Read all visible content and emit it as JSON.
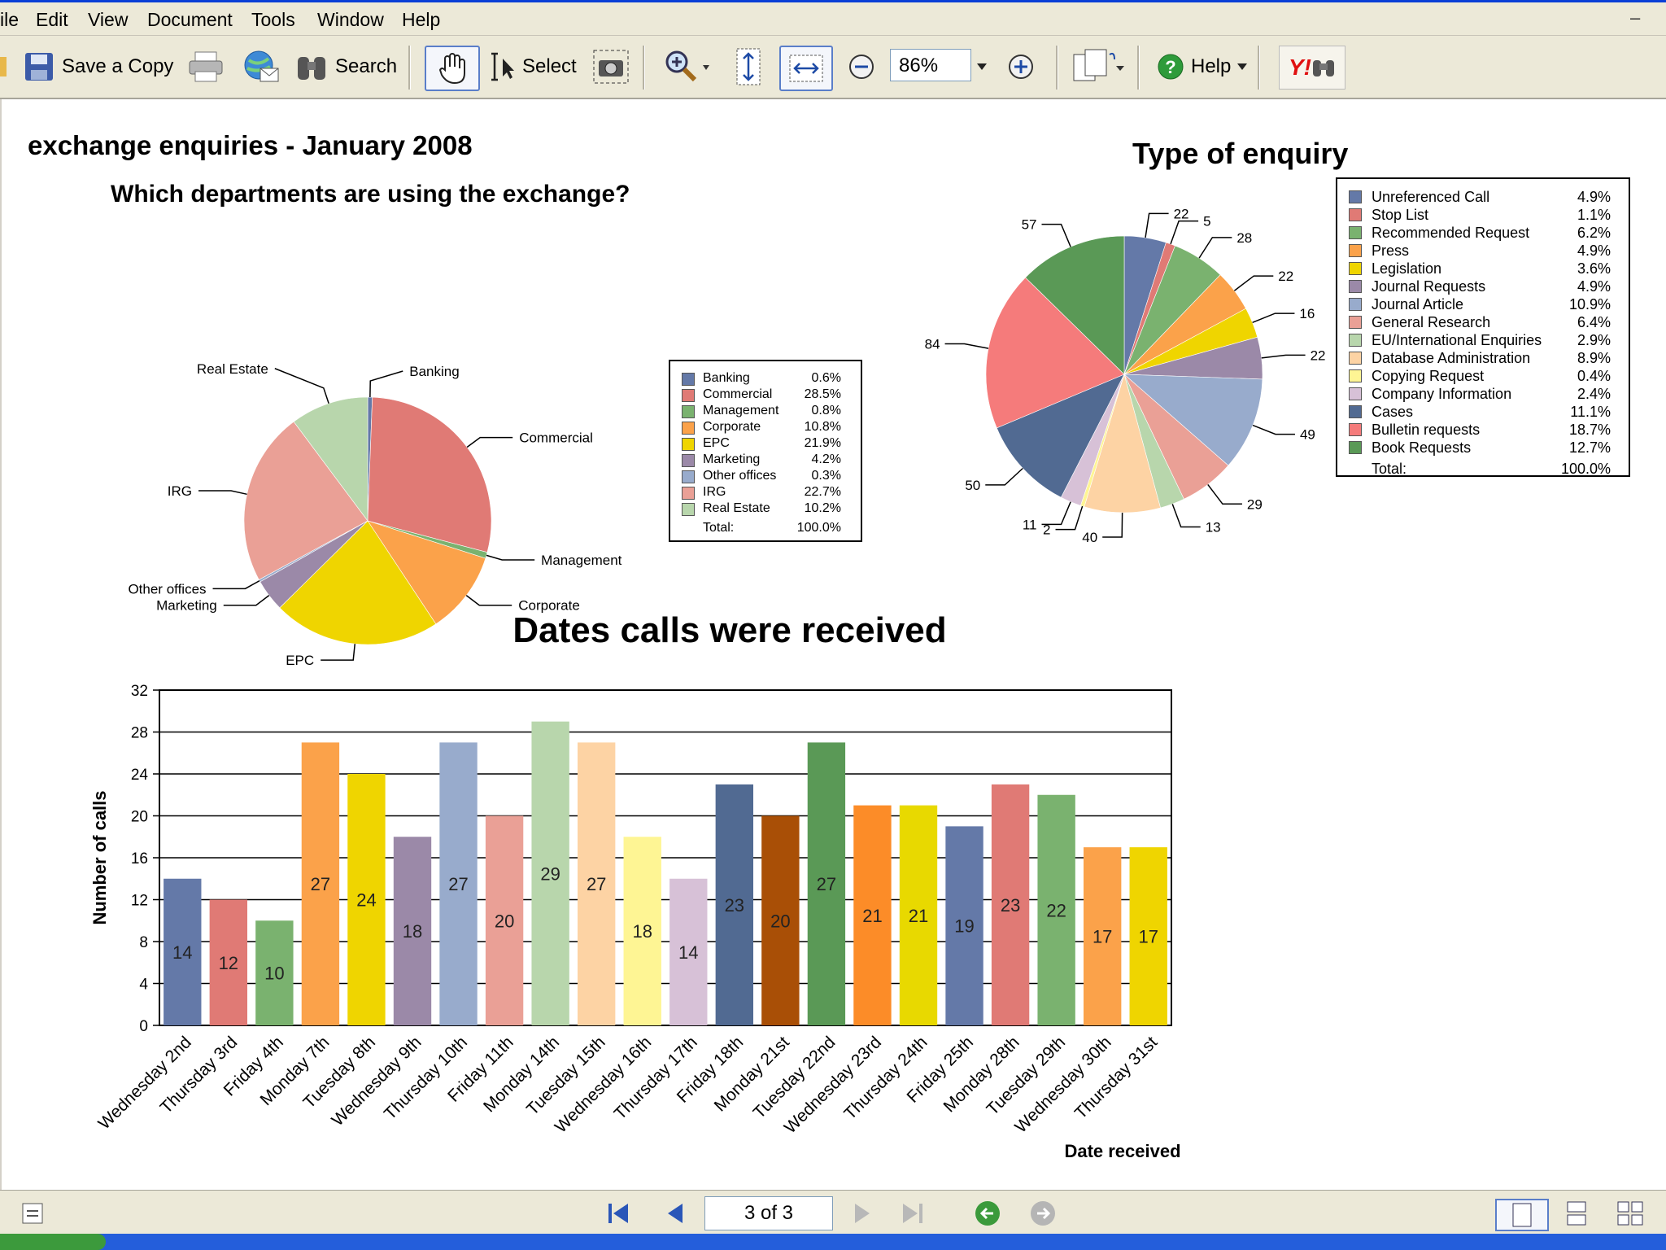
{
  "menu": {
    "items": [
      "ile",
      "Edit",
      "View",
      "Document",
      "Tools",
      "Window",
      "Help"
    ]
  },
  "toolbar": {
    "save_copy": "Save a Copy",
    "search": "Search",
    "select": "Select",
    "zoom": "86%",
    "help": "Help",
    "yahoo": "Y!"
  },
  "document": {
    "title": "exchange enquiries - January 2008"
  },
  "status": {
    "page": "3 of 3"
  },
  "colors": {
    "accent": "#0a3fd6",
    "toolbar_bg": "#ece9d8"
  },
  "chart_data": [
    {
      "type": "pie",
      "title": "Which departments are using the exchange?",
      "slices": [
        {
          "label": "Banking",
          "pct": "0.6%",
          "value": 0.6,
          "color": "#6479a8"
        },
        {
          "label": "Commercial",
          "pct": "28.5%",
          "value": 28.5,
          "color": "#e07a75"
        },
        {
          "label": "Management",
          "pct": "0.8%",
          "value": 0.8,
          "color": "#7ab26f"
        },
        {
          "label": "Corporate",
          "pct": "10.8%",
          "value": 10.8,
          "color": "#fba24a"
        },
        {
          "label": "EPC",
          "pct": "21.9%",
          "value": 21.9,
          "color": "#efd500"
        },
        {
          "label": "Marketing",
          "pct": "4.2%",
          "value": 4.2,
          "color": "#9b89a8"
        },
        {
          "label": "Other offices",
          "pct": "0.3%",
          "value": 0.3,
          "color": "#98abcc"
        },
        {
          "label": "IRG",
          "pct": "22.7%",
          "value": 22.7,
          "color": "#eaa096"
        },
        {
          "label": "Real Estate",
          "pct": "10.2%",
          "value": 10.2,
          "color": "#b8d6ac"
        }
      ],
      "total_label": "Total:",
      "total_pct": "100.0%"
    },
    {
      "type": "pie",
      "title": "Type of enquiry",
      "slices": [
        {
          "label": "Unreferenced Call",
          "pct": "4.9%",
          "value": 22,
          "color": "#6479a8"
        },
        {
          "label": "Stop List",
          "pct": "1.1%",
          "value": 5,
          "color": "#e07a75"
        },
        {
          "label": "Recommended Request",
          "pct": "6.2%",
          "value": 28,
          "color": "#7ab26f"
        },
        {
          "label": "Press",
          "pct": "4.9%",
          "value": 22,
          "color": "#fba24a"
        },
        {
          "label": "Legislation",
          "pct": "3.6%",
          "value": 16,
          "color": "#efd500"
        },
        {
          "label": "Journal Requests",
          "pct": "4.9%",
          "value": 22,
          "color": "#9b89a8"
        },
        {
          "label": "Journal Article",
          "pct": "10.9%",
          "value": 49,
          "color": "#98abcc"
        },
        {
          "label": "General Research",
          "pct": "6.4%",
          "value": 29,
          "color": "#eaa096"
        },
        {
          "label": "EU/International Enquiries",
          "pct": "2.9%",
          "value": 13,
          "color": "#b8d6ac"
        },
        {
          "label": "Database Administration",
          "pct": "8.9%",
          "value": 40,
          "color": "#fdd3a4"
        },
        {
          "label": "Copying Request",
          "pct": "0.4%",
          "value": 2,
          "color": "#fef594"
        },
        {
          "label": "Company Information",
          "pct": "2.4%",
          "value": 11,
          "color": "#d7c1d7"
        },
        {
          "label": "Cases",
          "pct": "11.1%",
          "value": 50,
          "color": "#516a92"
        },
        {
          "label": "Bulletin requests",
          "pct": "18.7%",
          "value": 84,
          "color": "#f57b7b"
        },
        {
          "label": "Book Requests",
          "pct": "12.7%",
          "value": 57,
          "color": "#5a9956"
        }
      ],
      "total_label": "Total:",
      "total_pct": "100.0%"
    },
    {
      "type": "bar",
      "title": "Dates calls were received",
      "xlabel": "Date received",
      "ylabel": "Number of calls",
      "ylim": [
        0,
        32
      ],
      "yticks": [
        "0",
        "4",
        "8",
        "12",
        "16",
        "20",
        "24",
        "28",
        "32"
      ],
      "categories": [
        "Wednesday 2nd",
        "Thursday 3rd",
        "Friday 4th",
        "Monday 7th",
        "Tuesday 8th",
        "Wednesday 9th",
        "Thursday 10th",
        "Friday 11th",
        "Monday 14th",
        "Tuesday 15th",
        "Wednesday 16th",
        "Thursday 17th",
        "Friday 18th",
        "Monday 21st",
        "Tuesday 22nd",
        "Wednesday 23rd",
        "Thursday 24th",
        "Friday 25th",
        "Monday 28th",
        "Tuesday 29th",
        "Wednesday 30th",
        "Thursday 31st"
      ],
      "values": [
        14,
        12,
        10,
        27,
        24,
        18,
        27,
        20,
        29,
        27,
        18,
        14,
        23,
        20,
        27,
        21,
        21,
        19,
        23,
        22,
        17,
        17
      ],
      "colors": [
        "#6479a8",
        "#e07a75",
        "#7ab26f",
        "#fba24a",
        "#efd500",
        "#9b89a8",
        "#98abcc",
        "#eaa096",
        "#b8d6ac",
        "#fdd3a4",
        "#fef594",
        "#d7c1d7",
        "#516a92",
        "#a94f06",
        "#5a9956",
        "#fc8c28",
        "#e8d900",
        "#6479a8",
        "#e07a75",
        "#7ab26f",
        "#fba24a",
        "#efd500"
      ],
      "grid": true
    }
  ]
}
